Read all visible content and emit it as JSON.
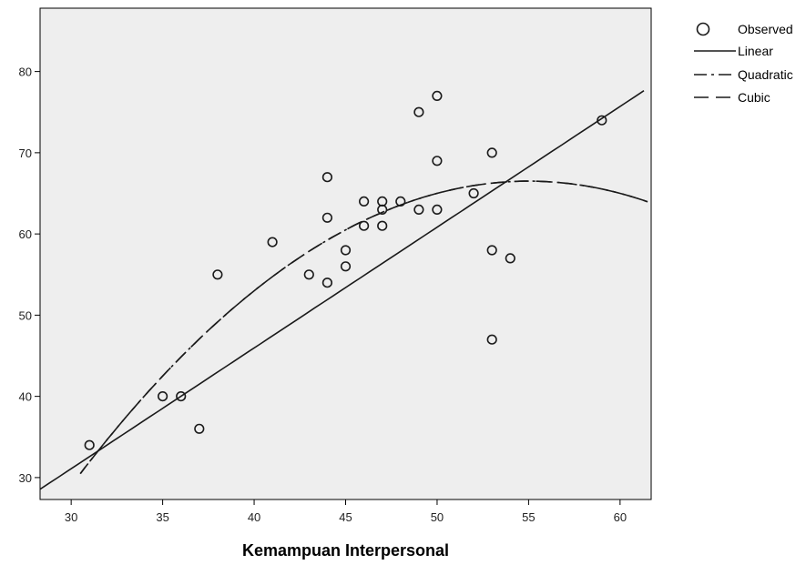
{
  "chart_data": {
    "type": "scatter",
    "xlabel": "Kemampuan Interpersonal",
    "ylabel": "",
    "xlim": [
      28.3,
      61.7
    ],
    "ylim": [
      27.3,
      87.8
    ],
    "x_ticks": [
      30,
      35,
      40,
      45,
      50,
      55,
      60
    ],
    "y_ticks": [
      30,
      40,
      50,
      60,
      70,
      80
    ],
    "grid": false,
    "background": "#eeeeee",
    "legend_position": "top-right",
    "legend": {
      "observed": "Observed",
      "linear": "Linear",
      "quadratic": "Quadratic",
      "cubic": "Cubic"
    },
    "observed": [
      [
        31,
        34
      ],
      [
        35,
        40
      ],
      [
        36,
        40
      ],
      [
        37,
        36
      ],
      [
        38,
        55
      ],
      [
        41,
        59
      ],
      [
        43,
        55
      ],
      [
        44,
        67
      ],
      [
        44,
        62
      ],
      [
        44,
        54
      ],
      [
        45,
        58
      ],
      [
        45,
        56
      ],
      [
        46,
        64
      ],
      [
        46,
        61
      ],
      [
        47,
        64
      ],
      [
        47,
        63
      ],
      [
        47,
        61
      ],
      [
        48,
        64
      ],
      [
        49,
        75
      ],
      [
        49,
        63
      ],
      [
        50,
        77
      ],
      [
        50,
        69
      ],
      [
        50,
        63
      ],
      [
        52,
        65
      ],
      [
        53,
        70
      ],
      [
        53,
        58
      ],
      [
        53,
        47
      ],
      [
        54,
        57
      ],
      [
        59,
        74
      ]
    ],
    "series": [
      {
        "name": "Linear",
        "intercept": -13.52,
        "slope": 1.487
      },
      {
        "name": "Quadratic",
        "coefficients": [
          -115.0,
          6.6,
          -0.06
        ]
      },
      {
        "name": "Cubic",
        "coefficients": [
          -115.0,
          6.6,
          -0.06,
          0.0
        ]
      }
    ],
    "marker_color": "#1a1a1a",
    "line_color": "#1a1a1a"
  }
}
